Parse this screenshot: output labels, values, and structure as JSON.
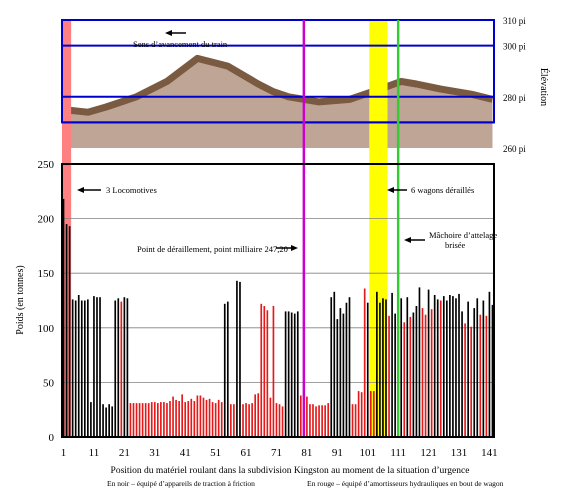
{
  "chart_data": [
    {
      "type": "area",
      "ylabel": "Élévation",
      "ylim": [
        260,
        310
      ],
      "yticks": [
        "260 pi",
        "280 pi",
        "300 pi",
        "310 pi"
      ],
      "annotation": "Sens d’avancement du train",
      "x": [
        1,
        9,
        15,
        25,
        35,
        45,
        55,
        65,
        70,
        75,
        85,
        95,
        105,
        112,
        117,
        125,
        135,
        142
      ],
      "values": [
        275,
        274,
        276,
        280,
        286,
        295,
        292,
        285,
        282,
        280,
        278,
        279,
        283,
        286,
        285,
        283,
        281,
        279
      ],
      "colors": {
        "frame": "#0000cc",
        "fill": "#bfa595",
        "line": "#7a5a40"
      }
    },
    {
      "type": "bar",
      "ylabel": "Poids (en tonnes)",
      "xlabel": "Position du matériel roulant dans la subdivision Kingston au moment de la situation d’urgence",
      "legend_black": "En noir – équipé d’appareils de traction à friction",
      "legend_red": "En rouge – équipé d’amortisseurs hydrauliques en bout de wagon",
      "ylim": [
        0,
        250
      ],
      "yticks": [
        "0",
        "50",
        "100",
        "150",
        "200",
        "250"
      ],
      "xticks": [
        "1",
        "11",
        "21",
        "31",
        "41",
        "51",
        "61",
        "71",
        "81",
        "91",
        "101",
        "111",
        "121",
        "131",
        "141"
      ],
      "xtick_values": [
        1,
        11,
        21,
        31,
        41,
        51,
        61,
        71,
        81,
        91,
        101,
        111,
        121,
        131,
        141
      ],
      "positions": [
        1,
        2,
        3,
        4,
        5,
        6,
        7,
        8,
        9,
        10,
        11,
        12,
        13,
        14,
        15,
        16,
        17,
        18,
        19,
        20,
        21,
        22,
        23,
        24,
        25,
        26,
        27,
        28,
        29,
        30,
        31,
        32,
        33,
        34,
        35,
        36,
        37,
        38,
        39,
        40,
        41,
        42,
        43,
        44,
        45,
        46,
        47,
        48,
        49,
        50,
        51,
        52,
        53,
        54,
        55,
        56,
        57,
        58,
        59,
        60,
        61,
        62,
        63,
        64,
        65,
        66,
        67,
        68,
        69,
        70,
        71,
        72,
        73,
        74,
        75,
        76,
        77,
        78,
        79,
        80,
        81,
        82,
        83,
        84,
        85,
        86,
        87,
        88,
        89,
        90,
        91,
        92,
        93,
        94,
        95,
        96,
        97,
        98,
        99,
        100,
        101,
        102,
        103,
        104,
        105,
        106,
        107,
        108,
        109,
        110,
        111,
        112,
        113,
        114,
        115,
        116,
        117,
        118,
        119,
        120,
        121,
        122,
        123,
        124,
        125,
        126,
        127,
        128,
        129,
        130,
        131,
        132,
        133,
        134,
        135,
        136,
        137,
        138,
        139,
        140,
        141,
        142
      ],
      "values": [
        218,
        195,
        193,
        126,
        125,
        130,
        125,
        125,
        126,
        32,
        129,
        128,
        128,
        30,
        27,
        30,
        28,
        125,
        127,
        124,
        128,
        127,
        31,
        31,
        31,
        31,
        31,
        31,
        31,
        32,
        32,
        31,
        32,
        32,
        31,
        33,
        37,
        34,
        33,
        39,
        32,
        33,
        35,
        33,
        38,
        38,
        36,
        34,
        35,
        32,
        31,
        34,
        32,
        122,
        124,
        30,
        30,
        143,
        142,
        30,
        31,
        30,
        31,
        39,
        40,
        122,
        120,
        116,
        36,
        120,
        31,
        30,
        28,
        115,
        115,
        114,
        113,
        115,
        38,
        40,
        37,
        30,
        30,
        28,
        29,
        29,
        29,
        31,
        128,
        133,
        108,
        118,
        113,
        123,
        128,
        30,
        30,
        42,
        41,
        136,
        123,
        42,
        42,
        133,
        123,
        127,
        126,
        111,
        132,
        113,
        112,
        127,
        105,
        128,
        110,
        114,
        120,
        137,
        118,
        112,
        135,
        117,
        130,
        126,
        125,
        129,
        125,
        130,
        129,
        127,
        131,
        115,
        104,
        124,
        101,
        118,
        127,
        112,
        125,
        111,
        133,
        121
      ],
      "colors": [
        "#000000",
        "#000000",
        "#000000",
        "#000000",
        "#000000",
        "#000000",
        "#000000",
        "#000000",
        "#000000",
        "#000000",
        "#000000",
        "#000000",
        "#000000",
        "#000000",
        "#000000",
        "#000000",
        "#000000",
        "#000000",
        "#000000",
        "#e41a1a",
        "#000000",
        "#000000",
        "#e41a1a",
        "#e41a1a",
        "#e41a1a",
        "#e41a1a",
        "#e41a1a",
        "#e41a1a",
        "#e41a1a",
        "#e41a1a",
        "#e41a1a",
        "#e41a1a",
        "#e41a1a",
        "#e41a1a",
        "#e41a1a",
        "#e41a1a",
        "#e41a1a",
        "#e41a1a",
        "#e41a1a",
        "#e41a1a",
        "#e41a1a",
        "#e41a1a",
        "#e41a1a",
        "#e41a1a",
        "#e41a1a",
        "#e41a1a",
        "#e41a1a",
        "#e41a1a",
        "#e41a1a",
        "#e41a1a",
        "#e41a1a",
        "#e41a1a",
        "#e41a1a",
        "#000000",
        "#000000",
        "#e41a1a",
        "#e41a1a",
        "#000000",
        "#000000",
        "#e41a1a",
        "#e41a1a",
        "#e41a1a",
        "#e41a1a",
        "#e41a1a",
        "#e41a1a",
        "#e41a1a",
        "#e41a1a",
        "#e41a1a",
        "#e41a1a",
        "#e41a1a",
        "#e41a1a",
        "#e41a1a",
        "#e41a1a",
        "#000000",
        "#000000",
        "#000000",
        "#000000",
        "#000000",
        "#e41a1a",
        "#e41a1a",
        "#e41a1a",
        "#e41a1a",
        "#e41a1a",
        "#e41a1a",
        "#e41a1a",
        "#e41a1a",
        "#e41a1a",
        "#e41a1a",
        "#000000",
        "#000000",
        "#000000",
        "#000000",
        "#000000",
        "#000000",
        "#000000",
        "#e41a1a",
        "#e41a1a",
        "#e41a1a",
        "#e41a1a",
        "#e41a1a",
        "#000000",
        "#e41a1a",
        "#e41a1a",
        "#000000",
        "#000000",
        "#000000",
        "#000000",
        "#e41a1a",
        "#000000",
        "#000000",
        "#e41a1a",
        "#000000",
        "#e41a1a",
        "#000000",
        "#e41a1a",
        "#000000",
        "#000000",
        "#000000",
        "#e41a1a",
        "#e41a1a",
        "#000000",
        "#e41a1a",
        "#000000",
        "#000000",
        "#e41a1a",
        "#000000",
        "#000000",
        "#000000",
        "#000000",
        "#000000",
        "#000000",
        "#000000",
        "#e41a1a",
        "#000000",
        "#e41a1a",
        "#000000",
        "#000000",
        "#e41a1a",
        "#000000",
        "#e41a1a",
        "#000000",
        "#000000"
      ],
      "annotations": {
        "locomotives": "3 Locomotives",
        "derailment": "Point de déraillement, point milliaire 247,20",
        "derailed_cars": "6 wagons déraillés",
        "coupler": "Mâchoire d’attelage brisée"
      },
      "markers": {
        "pink_band": [
          1,
          3
        ],
        "magenta_line": 80,
        "yellow_band": [
          102,
          107
        ],
        "green_line": 111
      },
      "marker_colors": {
        "pink": "#ff8080",
        "magenta": "#cc00cc",
        "yellow": "#ffff00",
        "green": "#33cc33"
      }
    }
  ]
}
